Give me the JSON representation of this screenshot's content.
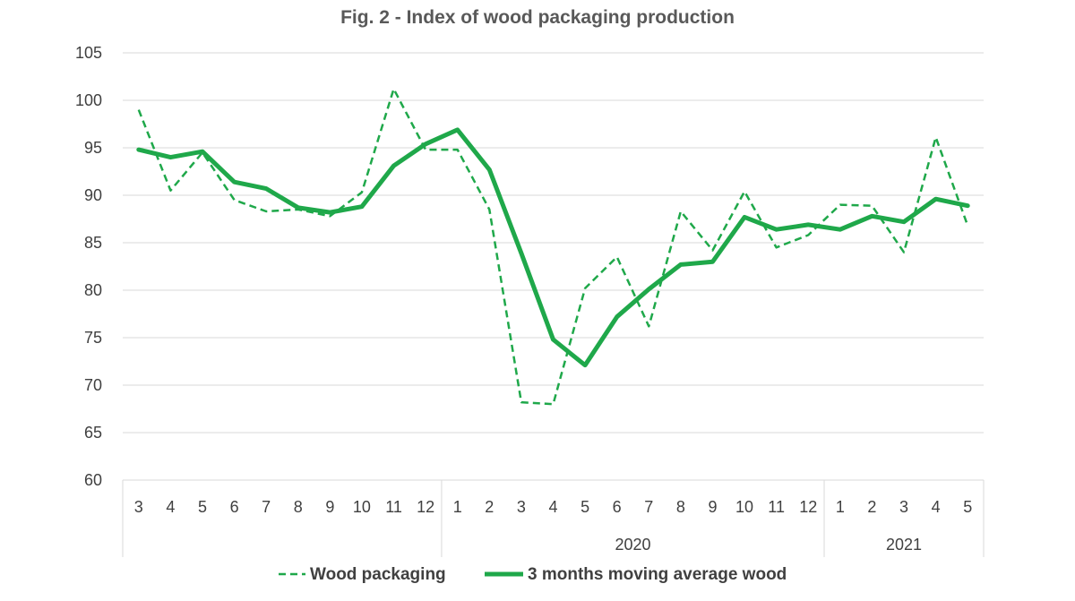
{
  "chart_data": {
    "type": "line",
    "title": "Fig. 2 - Index of wood packaging production",
    "xlabel": "",
    "ylabel": "",
    "ylim": [
      60,
      105
    ],
    "yticks": [
      "60",
      "65",
      "70",
      "75",
      "80",
      "85",
      "90",
      "95",
      "100",
      "105"
    ],
    "grid": true,
    "legend_position": "bottom",
    "categories": [
      "3",
      "4",
      "5",
      "6",
      "7",
      "8",
      "9",
      "10",
      "11",
      "12",
      "1",
      "2",
      "3",
      "4",
      "5",
      "6",
      "7",
      "8",
      "9",
      "10",
      "11",
      "12",
      "1",
      "2",
      "3",
      "4",
      "5"
    ],
    "year_groups": [
      {
        "label": "",
        "start": 0,
        "end": 9
      },
      {
        "label": "2020",
        "start": 10,
        "end": 21
      },
      {
        "label": "2021",
        "start": 22,
        "end": 26
      }
    ],
    "series": [
      {
        "name": "Wood packaging",
        "style": "dashed",
        "color": "#1fa84a",
        "values": [
          99.0,
          90.5,
          94.5,
          89.5,
          88.3,
          88.5,
          87.8,
          90.3,
          101.2,
          94.8,
          94.8,
          88.5,
          68.2,
          68.0,
          80.2,
          83.5,
          76.2,
          88.3,
          84.2,
          90.4,
          84.5,
          85.8,
          89.0,
          88.9,
          84.0,
          96.1,
          86.8
        ]
      },
      {
        "name": "3 months moving average wood",
        "style": "solid",
        "color": "#1fa84a",
        "values": [
          94.8,
          94.0,
          94.6,
          91.4,
          90.7,
          88.7,
          88.2,
          88.8,
          93.1,
          95.4,
          96.9,
          92.7,
          83.9,
          74.8,
          72.1,
          77.2,
          80.1,
          82.7,
          83.0,
          87.7,
          86.4,
          86.9,
          86.4,
          87.8,
          87.2,
          89.6,
          88.9
        ]
      }
    ]
  }
}
